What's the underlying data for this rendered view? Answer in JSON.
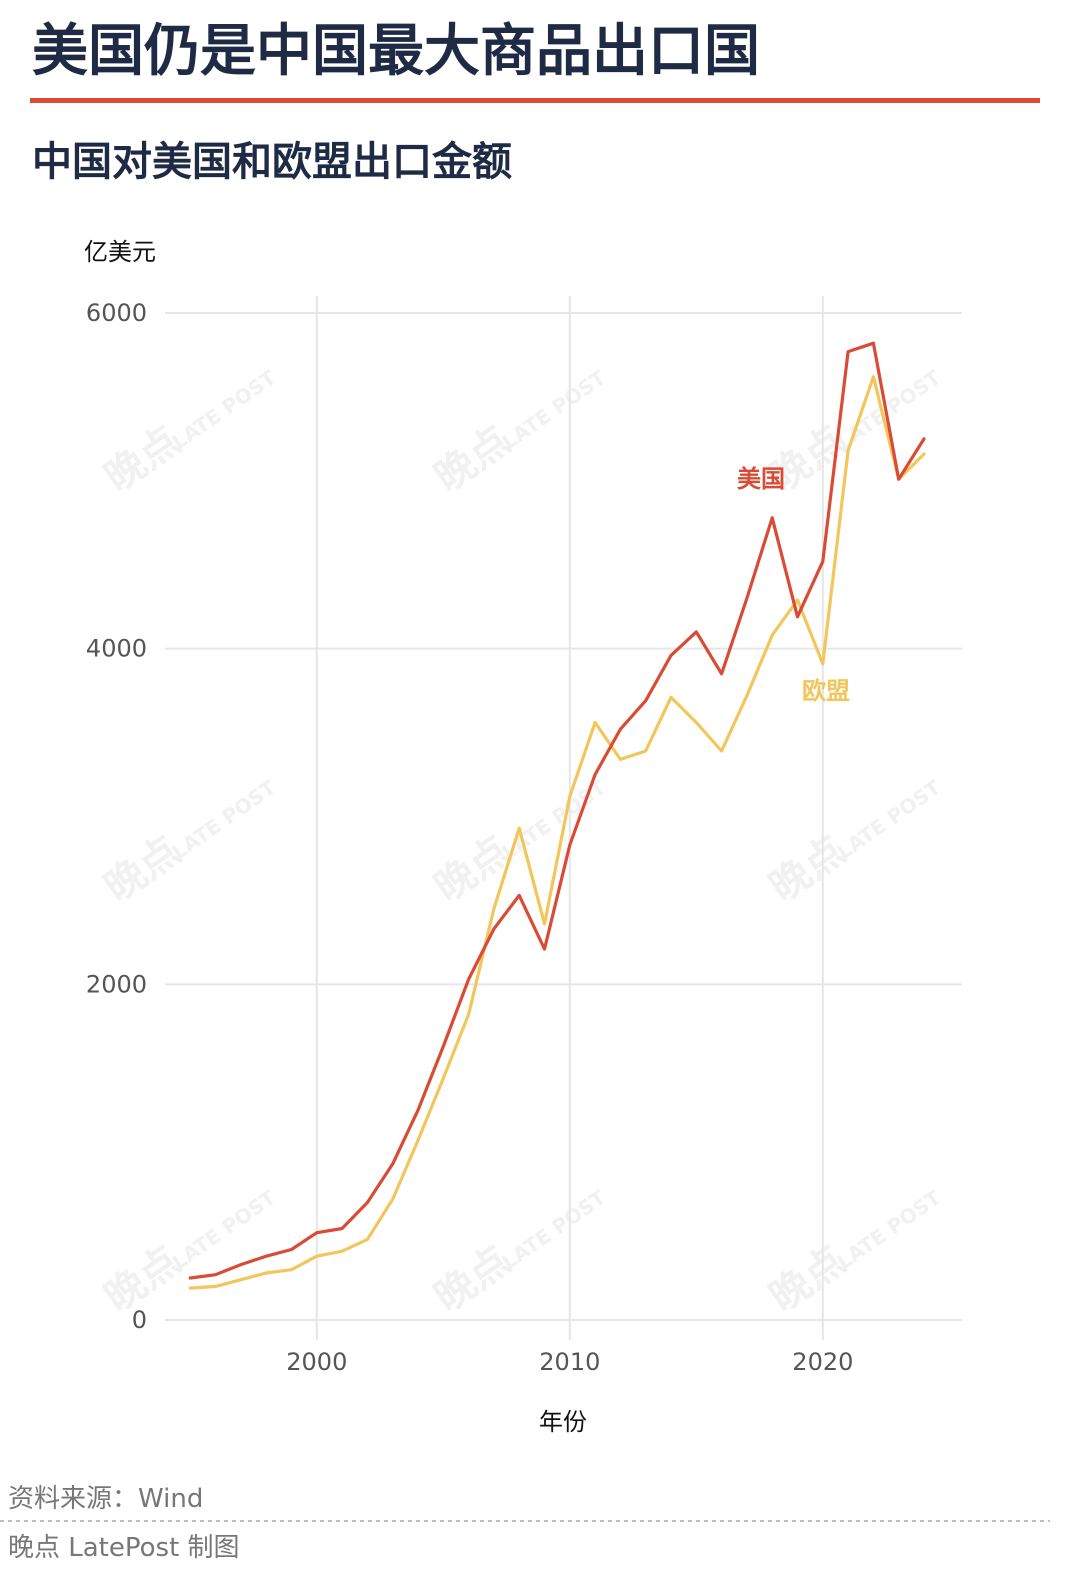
{
  "header": {
    "title": "美国仍是中国最大商品出口国",
    "subtitle": "中国对美国和欧盟出口金额"
  },
  "footer": {
    "source": "资料来源：Wind",
    "credit": "晚点 LatePost 制图"
  },
  "watermark": {
    "text": "晚点",
    "latin": "LATE POST"
  },
  "colors": {
    "accent": "#d94b35",
    "us": "#d94b35",
    "eu": "#f2c65b",
    "title": "#1f2a44",
    "grid": "#e6e6e6",
    "axis_text": "#555555"
  },
  "chart_data": {
    "type": "line",
    "title": "中国对美国和欧盟出口金额",
    "xlabel": "年份",
    "ylabel": "亿美元",
    "xlim": [
      1994,
      2025.5
    ],
    "ylim": [
      0,
      6000
    ],
    "x_ticks": [
      2000,
      2010,
      2020
    ],
    "y_ticks": [
      0,
      2000,
      4000,
      6000
    ],
    "grid": true,
    "legend": "direct-labels",
    "x": [
      1995,
      1996,
      1997,
      1998,
      1999,
      2000,
      2001,
      2002,
      2003,
      2004,
      2005,
      2006,
      2007,
      2008,
      2009,
      2010,
      2011,
      2012,
      2013,
      2014,
      2015,
      2016,
      2017,
      2018,
      2019,
      2020,
      2021,
      2022,
      2023,
      2024
    ],
    "series": [
      {
        "name": "美国",
        "color": "#d94b35",
        "values": [
          250,
          270,
          330,
          380,
          420,
          520,
          545,
          700,
          930,
          1250,
          1630,
          2030,
          2330,
          2530,
          2210,
          2830,
          3250,
          3520,
          3690,
          3960,
          4100,
          3850,
          4300,
          4780,
          4190,
          4520,
          5770,
          5820,
          5010,
          5250
        ]
      },
      {
        "name": "欧盟",
        "color": "#f2c65b",
        "values": [
          190,
          200,
          240,
          280,
          300,
          380,
          410,
          480,
          720,
          1070,
          1440,
          1820,
          2450,
          2930,
          2360,
          3120,
          3560,
          3340,
          3390,
          3710,
          3560,
          3390,
          3720,
          4080,
          4290,
          3910,
          5180,
          5620,
          5010,
          5160
        ]
      }
    ],
    "annotations": [
      {
        "text": "美国",
        "series": "美国"
      },
      {
        "text": "欧盟",
        "series": "欧盟"
      }
    ]
  }
}
